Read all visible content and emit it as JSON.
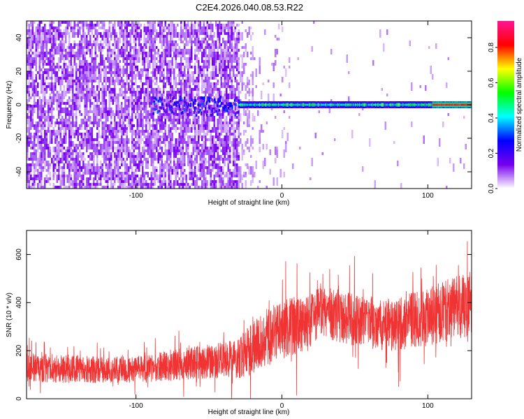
{
  "title": "C2E4.2026.040.08.53.R22",
  "colors": {
    "snr_line": "#f03333",
    "background": "#ffffff",
    "axis": "#000000"
  },
  "chart_data": [
    {
      "type": "heatmap",
      "xlabel": "Height of straight line (km)",
      "ylabel": "Frequency (Hz)",
      "xlim": [
        -175,
        130
      ],
      "ylim": [
        -50,
        50
      ],
      "xticks": [
        -100,
        0,
        100
      ],
      "yticks": [
        -40,
        -20,
        0,
        20,
        40
      ],
      "colorbar": {
        "label": "Normalized spectral amplitude",
        "range": [
          0,
          0.95
        ],
        "ticks": [
          "0.0",
          "0.2",
          "0.4",
          "0.6",
          "0.8"
        ],
        "tick_values": [
          0.0,
          0.2,
          0.4,
          0.6,
          0.8
        ],
        "colormap": [
          "#ffffff",
          "#7700ee",
          "#0000ff",
          "#00ffff",
          "#00ff00",
          "#ffff00",
          "#ff0000",
          "#ff1493"
        ]
      },
      "features": [
        {
          "name": "noise",
          "x_range": [
            -175,
            -30
          ],
          "freq_range": [
            -50,
            50
          ],
          "amplitude": 0.05
        },
        {
          "name": "carrier",
          "x_range": [
            -30,
            130
          ],
          "freq": 0,
          "amplitude": 0.6
        },
        {
          "name": "carrier-peak",
          "x_range": [
            103,
            130
          ],
          "freq": 0,
          "amplitude": 0.9
        }
      ]
    },
    {
      "type": "line",
      "xlabel": "Height of straight line (km)",
      "ylabel": "SNR (10 * v/v)",
      "xlim": [
        -175,
        130
      ],
      "ylim": [
        0,
        700
      ],
      "xticks": [
        -100,
        0,
        100
      ],
      "yticks": [
        0,
        200,
        400,
        600
      ],
      "series": [
        {
          "name": "SNR",
          "x": [
            -175,
            -150,
            -125,
            -100,
            -75,
            -50,
            -30,
            -25,
            -10,
            0,
            15,
            25,
            50,
            75,
            100,
            115,
            130
          ],
          "mean": [
            130,
            125,
            120,
            120,
            140,
            155,
            165,
            190,
            260,
            285,
            320,
            360,
            330,
            305,
            340,
            370,
            400
          ],
          "spread": [
            60,
            60,
            55,
            55,
            65,
            70,
            80,
            100,
            120,
            120,
            120,
            110,
            110,
            110,
            120,
            130,
            140
          ]
        }
      ]
    }
  ]
}
